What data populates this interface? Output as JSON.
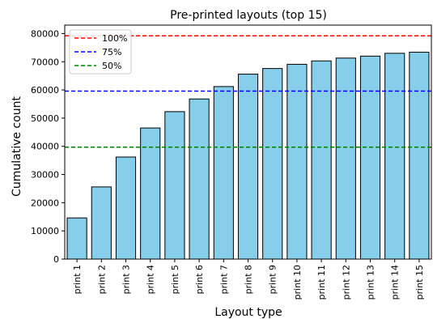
{
  "chart_data": {
    "type": "bar",
    "title": "Pre-printed layouts (top 15)",
    "xlabel": "Layout type",
    "ylabel": "Cumulative count",
    "categories": [
      "print 1",
      "print 2",
      "print 3",
      "print 4",
      "print 5",
      "print 6",
      "print 7",
      "print 8",
      "print 9",
      "print 10",
      "print 11",
      "print 12",
      "print 13",
      "print 14",
      "print 15"
    ],
    "values": [
      14600,
      25600,
      36200,
      46500,
      52300,
      56800,
      61200,
      65600,
      67600,
      69100,
      70300,
      71300,
      72000,
      73000,
      73400
    ],
    "ylim": [
      0,
      83000
    ],
    "yticks": [
      0,
      10000,
      20000,
      30000,
      40000,
      50000,
      60000,
      70000,
      80000
    ],
    "bar_color": "#87ceeb",
    "bar_edge_color": "#000000",
    "reference_lines": [
      {
        "label": "100%",
        "value": 79200,
        "color": "#ff0000"
      },
      {
        "label": "75%",
        "value": 59600,
        "color": "#0000ff"
      },
      {
        "label": "50%",
        "value": 39700,
        "color": "#008000"
      }
    ],
    "legend_position": "top-left",
    "grid": false
  }
}
